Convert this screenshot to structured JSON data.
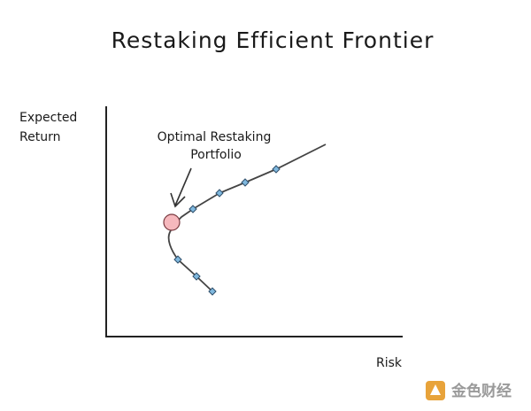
{
  "title": "Restaking Efficient Frontier",
  "y_axis_label": [
    "Expected",
    "Return"
  ],
  "x_axis_label": "Risk",
  "annotation": [
    "Optimal Restaking",
    "Portfolio"
  ],
  "watermark": "金色财经"
}
